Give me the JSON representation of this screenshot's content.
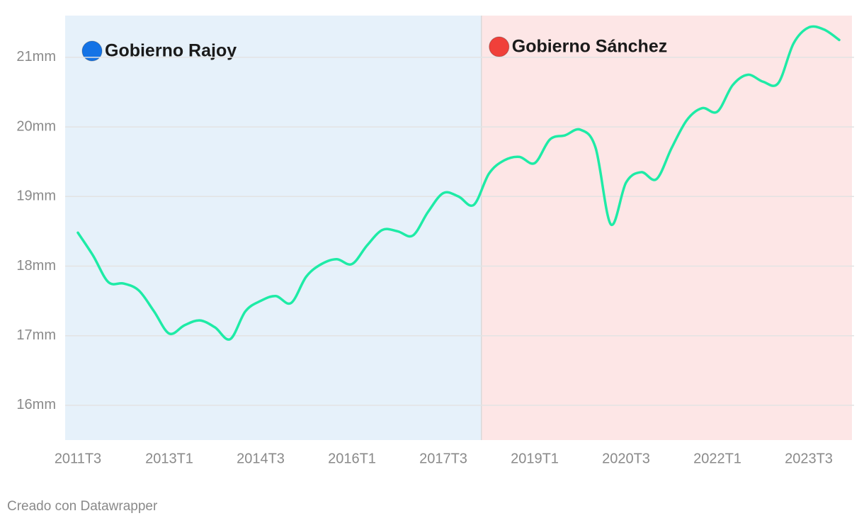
{
  "chart_data": {
    "type": "line",
    "categories": [
      "2011T3",
      null,
      null,
      null,
      null,
      null,
      "2013T1",
      null,
      null,
      null,
      null,
      null,
      "2014T3",
      null,
      null,
      null,
      null,
      null,
      "2016T1",
      null,
      null,
      null,
      null,
      null,
      "2017T3",
      null,
      null,
      null,
      null,
      null,
      "2019T1",
      null,
      null,
      null,
      null,
      null,
      "2020T3",
      null,
      null,
      null,
      null,
      null,
      "2022T1",
      null,
      null,
      null,
      null,
      null,
      "2023T3",
      null,
      null
    ],
    "series": [
      {
        "name": null,
        "color": "#1eeba6",
        "values": [
          18.48,
          18.15,
          17.77,
          17.75,
          17.65,
          17.35,
          17.03,
          17.15,
          17.22,
          17.12,
          16.95,
          17.35,
          17.5,
          17.57,
          17.47,
          17.85,
          18.03,
          18.1,
          18.03,
          18.3,
          18.52,
          18.5,
          18.44,
          18.78,
          19.05,
          19.0,
          18.88,
          19.33,
          19.52,
          19.57,
          19.48,
          19.82,
          19.88,
          19.96,
          19.7,
          18.6,
          19.2,
          19.35,
          19.25,
          19.7,
          20.1,
          20.27,
          20.22,
          20.6,
          20.75,
          20.65,
          20.63,
          21.2,
          21.43,
          21.4,
          21.25
        ]
      }
    ],
    "ylim": [
      15.5,
      21.6
    ],
    "yticks": [
      {
        "value": 16,
        "label": "16mm"
      },
      {
        "value": 17,
        "label": "17mm"
      },
      {
        "value": 18,
        "label": "18mm"
      },
      {
        "value": 19,
        "label": "19mm"
      },
      {
        "value": 20,
        "label": "20mm"
      },
      {
        "value": 21,
        "label": "21mm"
      }
    ],
    "grid": true,
    "regions": [
      {
        "label": "Gobierno Rajoy",
        "color": "#e6f1fa",
        "marker": "#1473e6"
      },
      {
        "label": "Gobierno Sánchez",
        "color": "#fde6e6",
        "marker": "#f0403a"
      }
    ],
    "region_boundary": 26.5,
    "source": "Creado con Datawrapper"
  }
}
